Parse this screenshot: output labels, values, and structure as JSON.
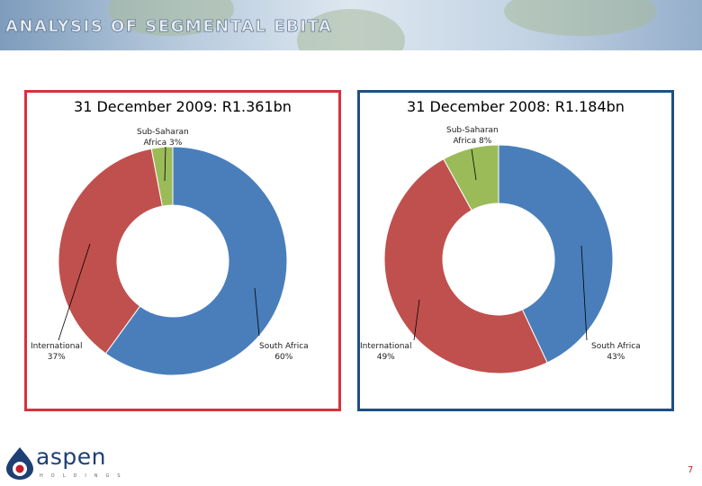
{
  "header": {
    "title": "ANALYSIS OF SEGMENTAL EBITA"
  },
  "colors": {
    "south_africa": "#4a7ebb",
    "international": "#c0504d",
    "sub_saharan": "#9bbb59"
  },
  "chart_data": [
    {
      "type": "pie",
      "title": "31 December 2009: R1.361bn",
      "segments": [
        {
          "name": "South Africa",
          "value": 60,
          "label": "60%"
        },
        {
          "name": "International",
          "value": 37,
          "label": "37%"
        },
        {
          "name": "Sub-Saharan Africa",
          "label_line1": "Sub-Saharan",
          "label_line2": "Africa 3%",
          "value": 3
        }
      ]
    },
    {
      "type": "pie",
      "title": "31 December 2008: R1.184bn",
      "segments": [
        {
          "name": "South Africa",
          "value": 43,
          "label": "43%"
        },
        {
          "name": "International",
          "value": 49,
          "label": "49%"
        },
        {
          "name": "Sub-Saharan Africa",
          "label_line1": "Sub-Saharan",
          "label_line2": "Africa 8%",
          "value": 8
        }
      ]
    }
  ],
  "footer": {
    "logo_text": "aspen",
    "logo_tag": "HOLDINGS",
    "page_number": "7"
  }
}
